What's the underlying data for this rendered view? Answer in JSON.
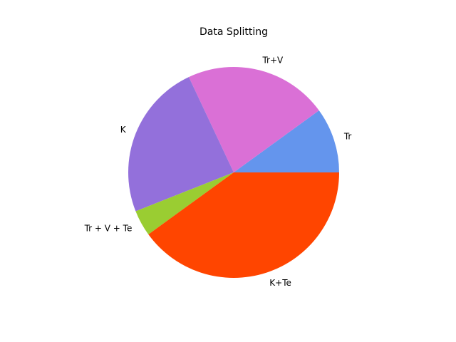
{
  "chart_data": {
    "type": "pie",
    "title": "Data Splitting",
    "categories": [
      "Tr",
      "Tr+V",
      "K",
      "Tr + V + Te",
      "K+Te"
    ],
    "values": [
      10,
      22,
      24,
      4,
      40
    ],
    "colors": [
      "#6495ED",
      "#DA70D6",
      "#9370DB",
      "#9ACD32",
      "#FF4500"
    ],
    "start_angle_deg": 0,
    "direction": "counterclockwise"
  }
}
